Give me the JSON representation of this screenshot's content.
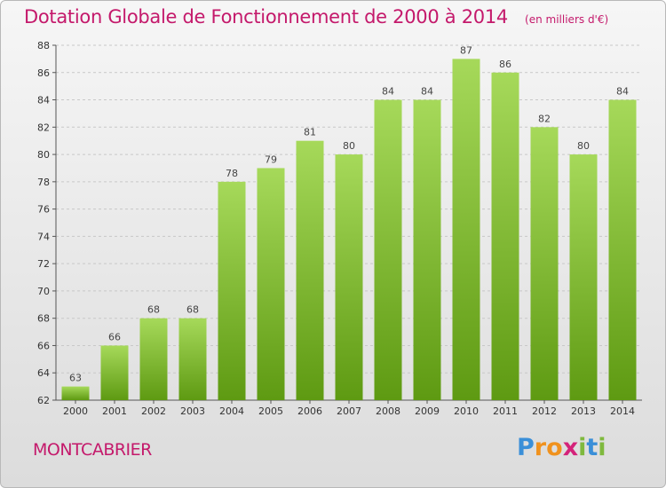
{
  "header": {
    "title": "Dotation Globale de Fonctionnement de 2000 à 2014",
    "subtitle": "(en milliers d'€)"
  },
  "footer": {
    "commune": "MONTCABRIER",
    "logo": {
      "letters": [
        "P",
        "r",
        "o",
        "x",
        "i",
        "t",
        "i"
      ],
      "colors": [
        "#3a8fd8",
        "#f0921e",
        "#f0921e",
        "#d4237a",
        "#7fb93e",
        "#3a8fd8",
        "#7fb93e"
      ]
    }
  },
  "colors": {
    "accent": "#c4196b",
    "bar_light": "#a6d95a",
    "bar_dark": "#5e9a12",
    "grid": "#c8c8c8",
    "axis": "#555555"
  },
  "chart_data": {
    "type": "bar",
    "title": "Dotation Globale de Fonctionnement de 2000 à 2014",
    "subtitle": "(en milliers d'€)",
    "xlabel": "",
    "ylabel": "",
    "categories": [
      "2000",
      "2001",
      "2002",
      "2003",
      "2004",
      "2005",
      "2006",
      "2007",
      "2008",
      "2009",
      "2010",
      "2011",
      "2012",
      "2013",
      "2014"
    ],
    "values": [
      63,
      66,
      68,
      68,
      78,
      79,
      81,
      80,
      84,
      84,
      87,
      86,
      82,
      80,
      84
    ],
    "ylim": [
      62,
      88
    ],
    "yticks": [
      62,
      64,
      66,
      68,
      70,
      72,
      74,
      76,
      78,
      80,
      82,
      84,
      86,
      88
    ],
    "grid": "horizontal-dashed",
    "legend": "none"
  }
}
